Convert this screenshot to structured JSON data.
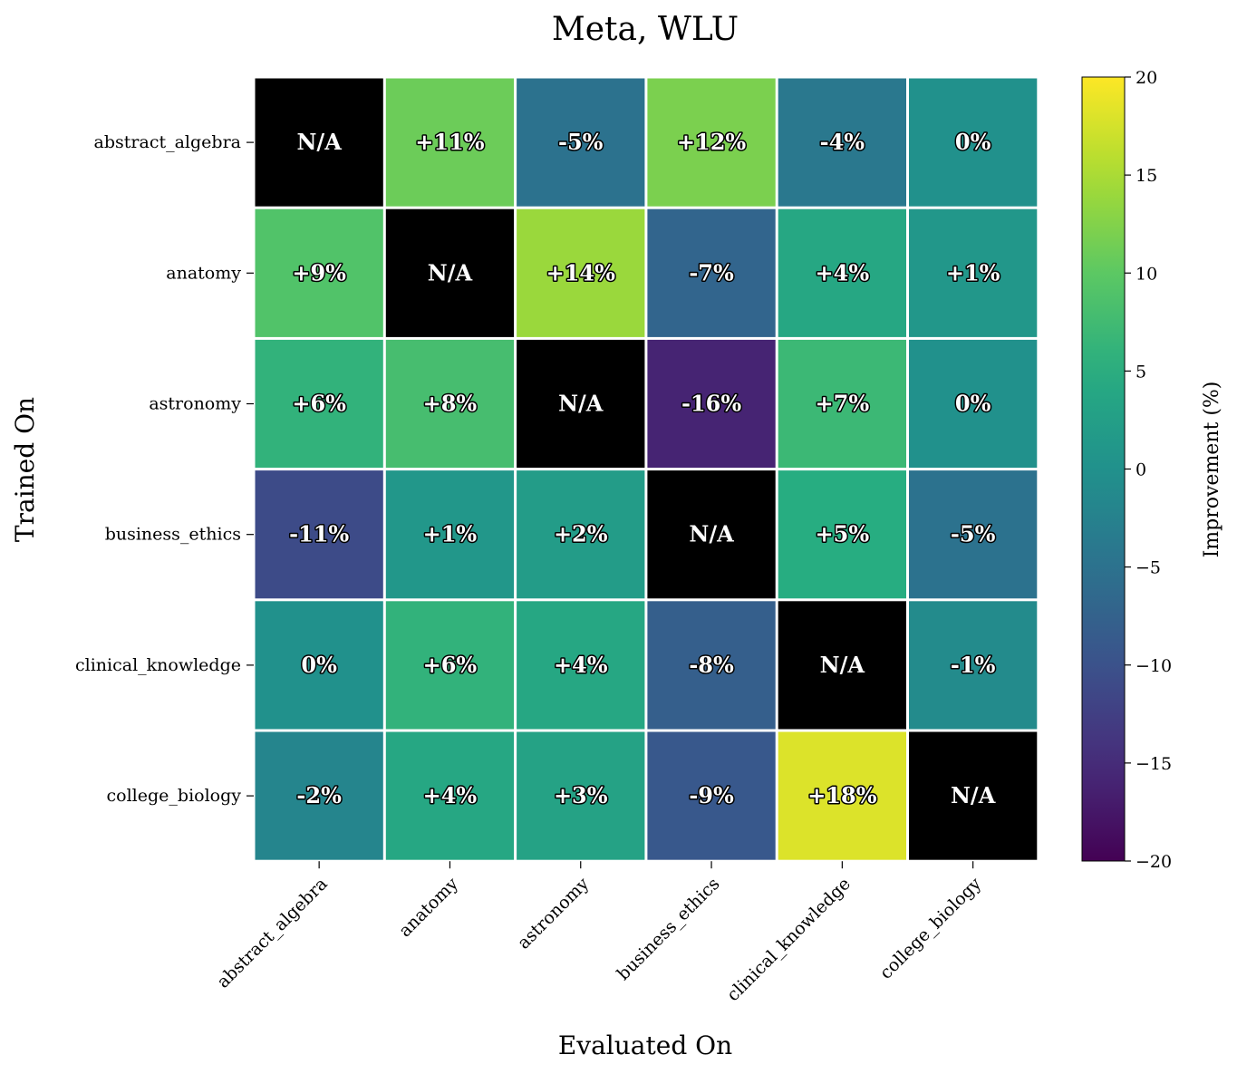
{
  "chart_data": {
    "type": "heatmap",
    "title": "Meta, WLU",
    "xlabel": "Evaluated On",
    "ylabel": "Trained On",
    "colorbar_label": "Improvement (%)",
    "colormap": "viridis",
    "vmin": -20,
    "vmax": 20,
    "colorbar_ticks": [
      20,
      15,
      10,
      5,
      0,
      -5,
      -10,
      -15,
      -20
    ],
    "colorbar_tick_labels": [
      "20",
      "15",
      "10",
      "5",
      "0",
      "−5",
      "−10",
      "−15",
      "−20"
    ],
    "na_color": "#000000",
    "rows": [
      "abstract_algebra",
      "anatomy",
      "astronomy",
      "business_ethics",
      "clinical_knowledge",
      "college_biology"
    ],
    "columns": [
      "abstract_algebra",
      "anatomy",
      "astronomy",
      "business_ethics",
      "clinical_knowledge",
      "college_biology"
    ],
    "values": [
      [
        null,
        11,
        -5,
        12,
        -4,
        0
      ],
      [
        9,
        null,
        14,
        -7,
        4,
        1
      ],
      [
        6,
        8,
        null,
        -16,
        7,
        0
      ],
      [
        -11,
        1,
        2,
        null,
        5,
        -5
      ],
      [
        0,
        6,
        4,
        -8,
        null,
        -1
      ],
      [
        -2,
        4,
        3,
        -9,
        18,
        null
      ]
    ],
    "labels": [
      [
        "N/A",
        "+11%",
        "-5%",
        "+12%",
        "-4%",
        "0%"
      ],
      [
        "+9%",
        "N/A",
        "+14%",
        "-7%",
        "+4%",
        "+1%"
      ],
      [
        "+6%",
        "+8%",
        "N/A",
        "-16%",
        "+7%",
        "0%"
      ],
      [
        "-11%",
        "+1%",
        "+2%",
        "N/A",
        "+5%",
        "-5%"
      ],
      [
        "0%",
        "+6%",
        "+4%",
        "-8%",
        "N/A",
        "-1%"
      ],
      [
        "-2%",
        "+4%",
        "+3%",
        "-9%",
        "+18%",
        "N/A"
      ]
    ]
  }
}
